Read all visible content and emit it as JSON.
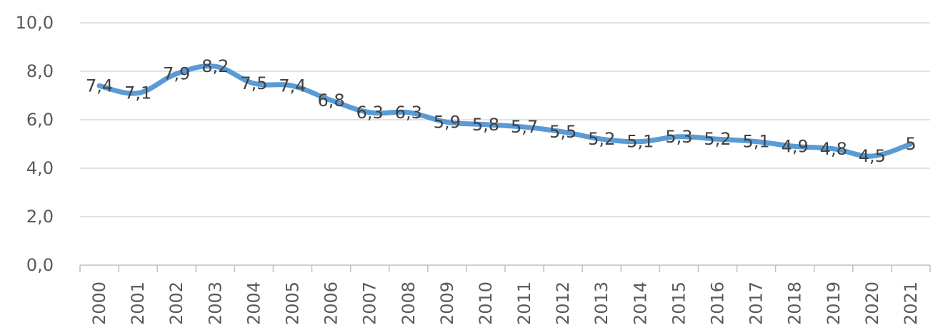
{
  "chart_data": {
    "type": "line",
    "title": "",
    "xlabel": "",
    "ylabel": "",
    "categories": [
      "2000",
      "2001",
      "2002",
      "2003",
      "2004",
      "2005",
      "2006",
      "2007",
      "2008",
      "2009",
      "2010",
      "2011",
      "2012",
      "2013",
      "2014",
      "2015",
      "2016",
      "2017",
      "2018",
      "2019",
      "2020",
      "2021"
    ],
    "series": [
      {
        "values": [
          7.4,
          7.1,
          7.9,
          8.2,
          7.5,
          7.4,
          6.8,
          6.3,
          6.3,
          5.9,
          5.8,
          5.7,
          5.5,
          5.2,
          5.1,
          5.3,
          5.2,
          5.1,
          4.9,
          4.8,
          4.5,
          5
        ],
        "data_labels": [
          "7,4",
          "7,1",
          "7,9",
          "8,2",
          "7,5",
          "7,4",
          "6,8",
          "6,3",
          "6,3",
          "5,9",
          "5,8",
          "5,7",
          "5,5",
          "5,2",
          "5,1",
          "5,3",
          "5,2",
          "5,1",
          "4,9",
          "4,8",
          "4,5",
          "5"
        ]
      }
    ],
    "ylim": [
      0,
      10
    ],
    "y_ticks": [
      0,
      2,
      4,
      6,
      8,
      10
    ],
    "y_tick_labels": [
      "0,0",
      "2,0",
      "4,0",
      "6,0",
      "8,0",
      "10,0"
    ],
    "grid": true,
    "legend": "none",
    "colors": {
      "series": "#5b9bd5",
      "grid": "#d9d9d9",
      "text": "#595959"
    }
  }
}
